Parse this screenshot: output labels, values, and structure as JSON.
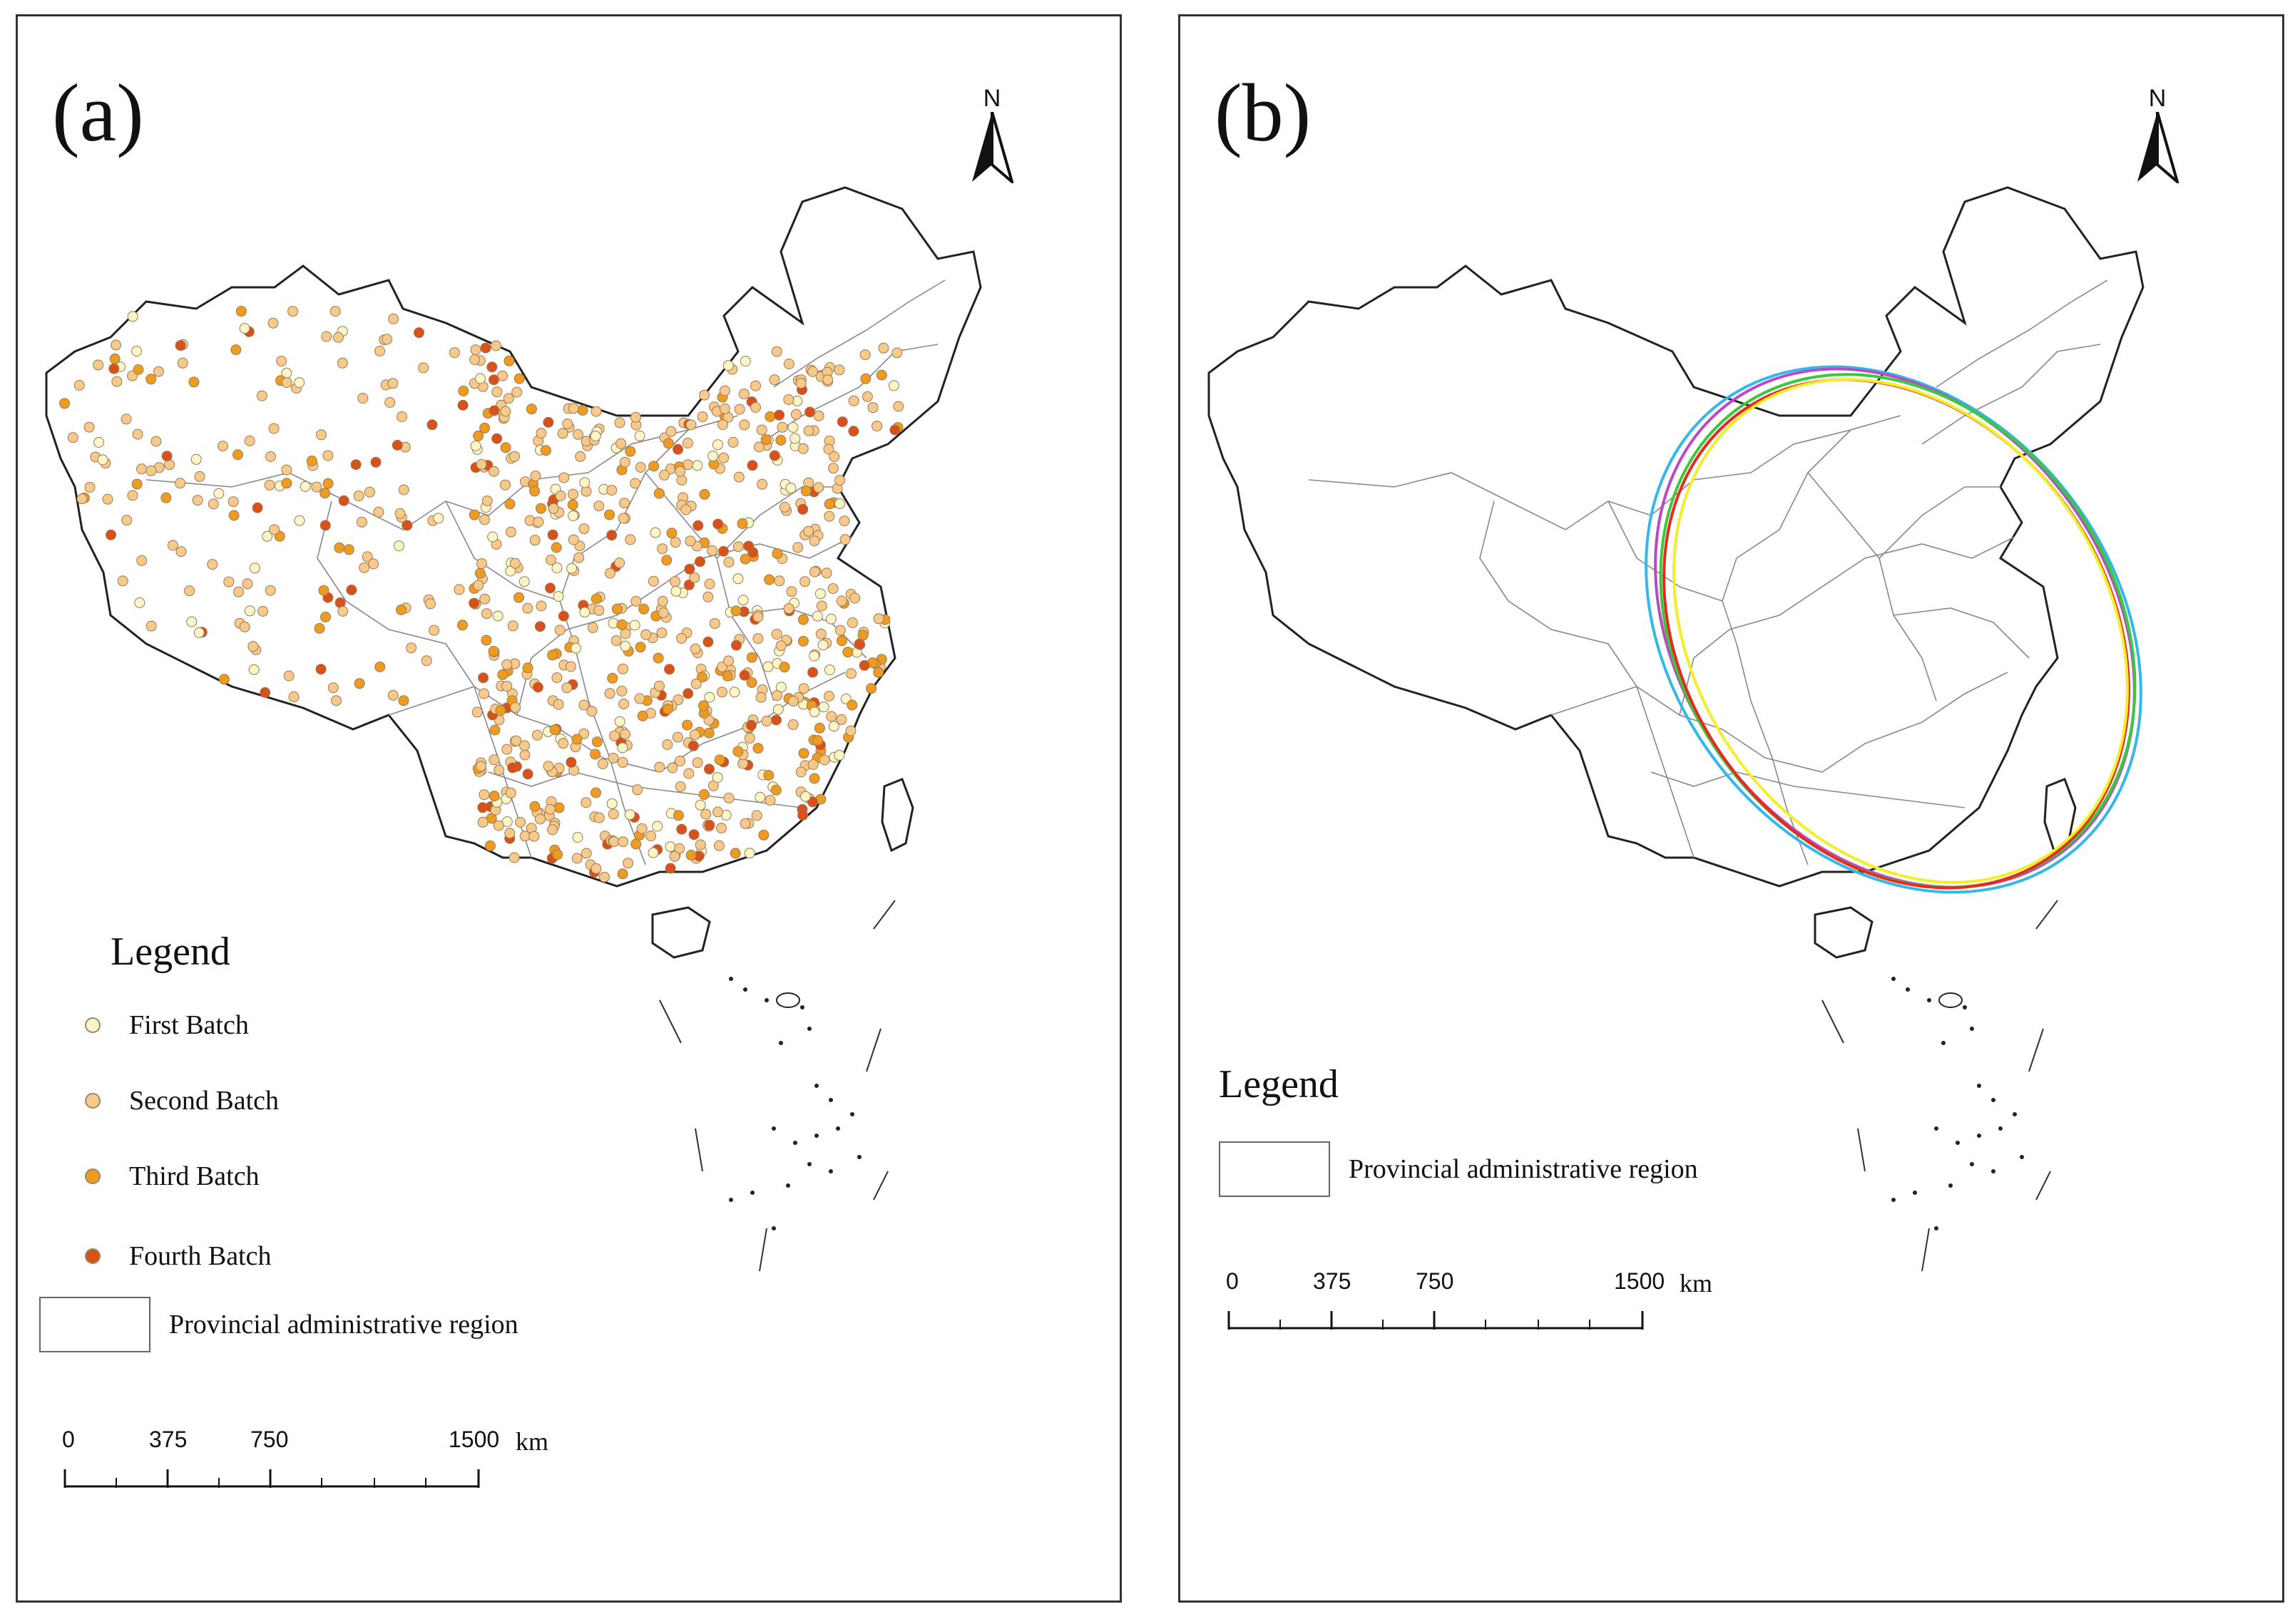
{
  "panels": [
    {
      "label": "(a)",
      "north": "N",
      "legend": {
        "title": "Legend",
        "items": [
          {
            "label": "First Batch",
            "color": "#FBF6C8"
          },
          {
            "label": "Second Batch",
            "color": "#F7C98A"
          },
          {
            "label": "Third Batch",
            "color": "#EE9B22"
          },
          {
            "label": "Fourth Batch",
            "color": "#D8501A"
          }
        ],
        "region_label": "Provincial administrative region"
      },
      "scale": {
        "ticks": [
          "0",
          "375",
          "750",
          "1500"
        ],
        "unit": "km"
      }
    },
    {
      "label": "(b)",
      "north": "N",
      "legend": {
        "title": "Legend",
        "region_label": "Provincial administrative region"
      },
      "scale": {
        "ticks": [
          "0",
          "375",
          "750",
          "1500"
        ],
        "unit": "km"
      },
      "ellipse_colors": [
        "#35B7E8",
        "#B84AC8",
        "#3CC83C",
        "#E82A1E",
        "#F2EE2A"
      ]
    }
  ],
  "styles": {
    "border_color": "#222222",
    "province_line_color": "#888888"
  }
}
